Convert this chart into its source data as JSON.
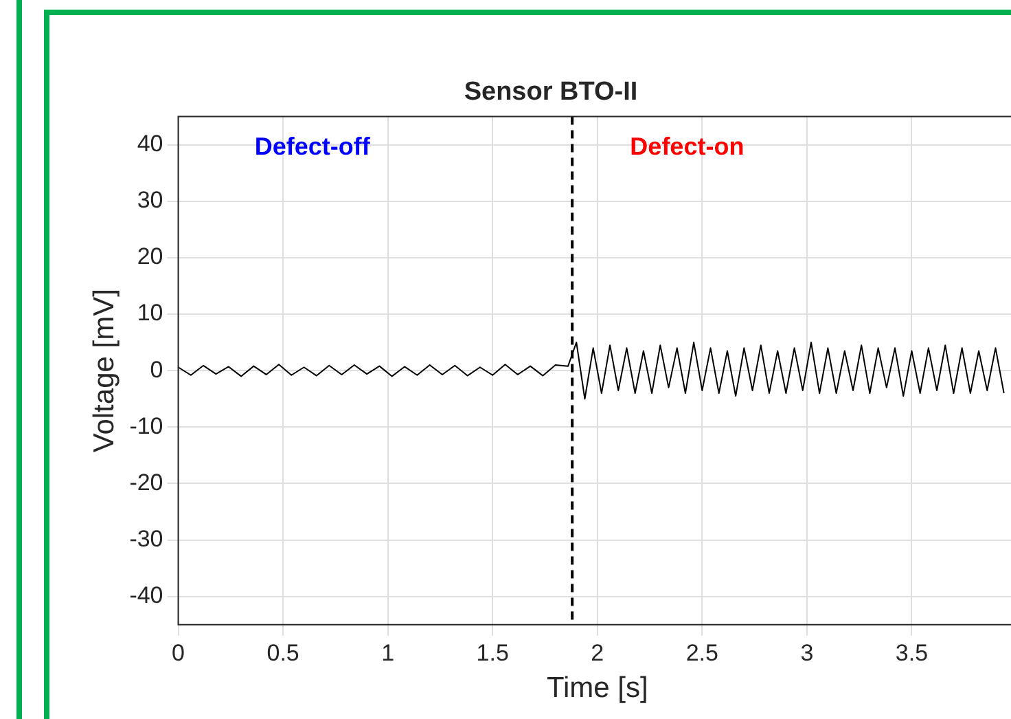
{
  "chart_data": {
    "type": "line",
    "title": "Sensor BTO-II",
    "xlabel": "Time [s]",
    "ylabel": "Voltage [mV]",
    "x": [
      0,
      0.06,
      0.12,
      0.18,
      0.24,
      0.3,
      0.36,
      0.42,
      0.48,
      0.54,
      0.6,
      0.66,
      0.72,
      0.78,
      0.84,
      0.9,
      0.96,
      1.02,
      1.08,
      1.14,
      1.2,
      1.26,
      1.32,
      1.38,
      1.44,
      1.5,
      1.56,
      1.62,
      1.68,
      1.74,
      1.8,
      1.86,
      1.9,
      1.94,
      1.98,
      2.02,
      2.06,
      2.1,
      2.14,
      2.18,
      2.22,
      2.26,
      2.3,
      2.34,
      2.38,
      2.42,
      2.46,
      2.5,
      2.54,
      2.58,
      2.62,
      2.66,
      2.7,
      2.74,
      2.78,
      2.82,
      2.86,
      2.9,
      2.94,
      2.98,
      3.02,
      3.06,
      3.1,
      3.14,
      3.18,
      3.22,
      3.26,
      3.3,
      3.34,
      3.38,
      3.42,
      3.46,
      3.5,
      3.54,
      3.58,
      3.62,
      3.66,
      3.7,
      3.74,
      3.78,
      3.82,
      3.86,
      3.9,
      3.94
    ],
    "series": [
      {
        "color": "#000000",
        "values": [
          0.6,
          -0.8,
          0.9,
          -0.6,
          0.7,
          -1.0,
          0.8,
          -0.7,
          1.1,
          -0.8,
          0.6,
          -0.9,
          0.9,
          -0.7,
          1.0,
          -0.6,
          0.8,
          -1.0,
          0.7,
          -0.8,
          1.0,
          -0.7,
          0.9,
          -0.9,
          0.6,
          -0.8,
          1.1,
          -0.7,
          0.8,
          -0.9,
          1.0,
          0.8,
          5,
          -5,
          4,
          -4,
          4.5,
          -3.5,
          4,
          -4,
          3.5,
          -4,
          4.5,
          -3,
          4,
          -4,
          5,
          -3.5,
          4,
          -4,
          3.5,
          -4.5,
          4,
          -3.5,
          4.5,
          -4,
          3.5,
          -4,
          4,
          -3.5,
          5,
          -4,
          4,
          -4,
          3.5,
          -3.5,
          4.5,
          -4,
          4,
          -3,
          4,
          -4.5,
          3.5,
          -4,
          4,
          -3.5,
          4.5,
          -4,
          4,
          -4,
          3.5,
          -3.5,
          4,
          -4
        ]
      }
    ],
    "xlim": [
      0,
      4
    ],
    "xticks": [
      0,
      0.5,
      1,
      1.5,
      2,
      2.5,
      3,
      3.5
    ],
    "ylim": [
      -45,
      45
    ],
    "yticks": [
      -40,
      -30,
      -20,
      -10,
      0,
      10,
      20,
      30,
      40
    ],
    "ref_lines": [
      {
        "axis": "x",
        "value": 1.88,
        "color": "#000000",
        "line_style": "dashed"
      }
    ],
    "annotations": [
      "Defect-off",
      "Defect-on"
    ],
    "grid": true,
    "legend": false,
    "marker": "none",
    "line_style": "solid"
  }
}
